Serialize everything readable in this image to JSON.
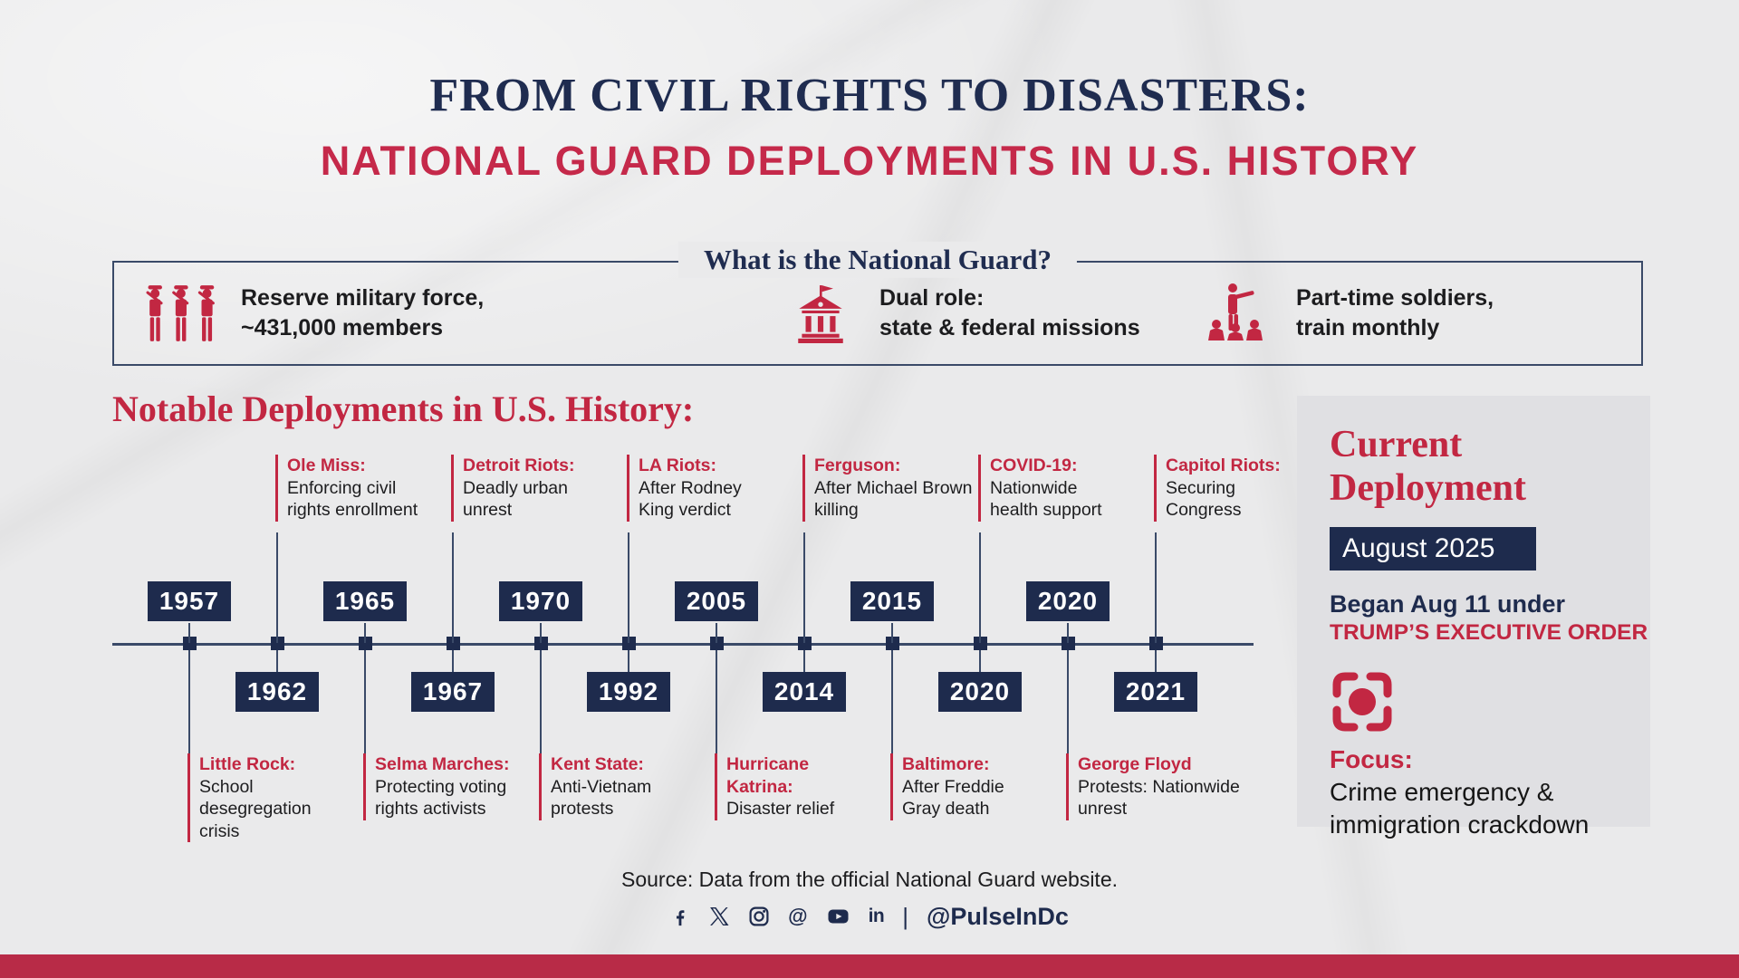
{
  "colors": {
    "navy": "#1e2b4d",
    "red": "#c22742",
    "paper": "#eaeaeb",
    "panel_gray": "#e0e0e3",
    "bottom_bar": "#b82b47"
  },
  "header": {
    "title": "FROM CIVIL RIGHTS TO DISASTERS:",
    "subtitle": "NATIONAL GUARD DEPLOYMENTS IN U.S. HISTORY"
  },
  "info_box": {
    "heading": "What is the National Guard?",
    "items": [
      {
        "icon": "soldiers-icon",
        "line1": "Reserve military force,",
        "line2": "~431,000 members"
      },
      {
        "icon": "government-building-icon",
        "line1": "Dual role:",
        "line2": "state & federal missions"
      },
      {
        "icon": "group-training-icon",
        "line1": "Part-time soldiers,",
        "line2": "train monthly"
      }
    ]
  },
  "section_heading": "Notable Deployments in U.S. History:",
  "timeline": {
    "events": [
      {
        "year": "1957",
        "title": "Little Rock:",
        "desc": "School desegregation\ncrisis"
      },
      {
        "year": "1962",
        "title": "Ole Miss:",
        "desc": "Enforcing civil\nrights enrollment"
      },
      {
        "year": "1965",
        "title": "Selma Marches:",
        "desc": "Protecting voting\nrights activists"
      },
      {
        "year": "1967",
        "title": "Detroit Riots:",
        "desc": "Deadly urban\nunrest"
      },
      {
        "year": "1970",
        "title": "Kent State:",
        "desc": "Anti-Vietnam\nprotests"
      },
      {
        "year": "1992",
        "title": "LA Riots:",
        "desc": "After Rodney\nKing verdict"
      },
      {
        "year": "2005",
        "title": "Hurricane\nKatrina:",
        "desc": "Disaster relief"
      },
      {
        "year": "2014",
        "title": "Ferguson:",
        "desc": "After Michael Brown\nkilling"
      },
      {
        "year": "2015",
        "title": "Baltimore:",
        "desc": "After Freddie\nGray death"
      },
      {
        "year": "2020",
        "title": "COVID-19:",
        "desc": "Nationwide\nhealth support"
      },
      {
        "year": "2020",
        "title": "George Floyd",
        "desc": "Protests: Nationwide\nunrest"
      },
      {
        "year": "2021",
        "title": "Capitol Riots:",
        "desc": "Securing\nCongress"
      }
    ]
  },
  "current_deployment": {
    "heading": "Current\nDeployment",
    "date_badge": "August 2025",
    "began_line": "Began Aug 11 under",
    "order_line": "TRUMP’S EXECUTIVE ORDER",
    "focus_icon": "focus-icon",
    "focus_label": "Focus:",
    "focus_desc": "Crime emergency &\nimmigration crackdown"
  },
  "footer": {
    "source": "Source: Data from the official National Guard website.",
    "social_icons": [
      "facebook-icon",
      "x-icon",
      "instagram-icon",
      "threads-icon",
      "youtube-icon",
      "linkedin-icon"
    ],
    "handle": "@PulseInDc"
  }
}
